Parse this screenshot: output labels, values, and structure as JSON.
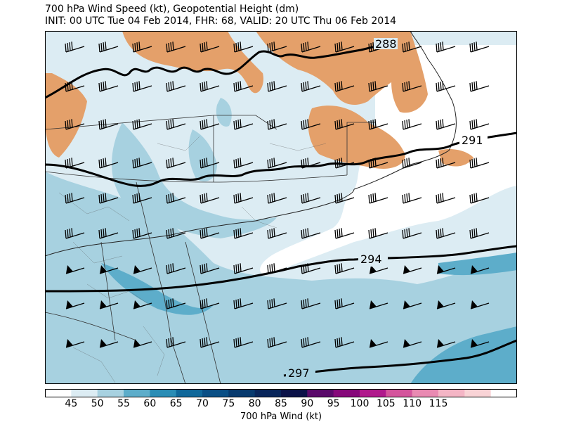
{
  "title": "700 hPa Wind Speed (kt), Geopotential Height (dm)",
  "subtitle": "INIT: 00 UTC Tue 04 Feb 2014, FHR: 68, VALID: 20 UTC Thu 06 Feb 2014",
  "colorbar": {
    "label": "700 hPa Wind (kt)",
    "ticks": [
      "45",
      "50",
      "55",
      "60",
      "65",
      "70",
      "75",
      "80",
      "85",
      "90",
      "95",
      "100",
      "105",
      "110",
      "115"
    ],
    "colors": [
      "#ffffff",
      "#dcecf3",
      "#a7d1e0",
      "#5dadca",
      "#2a8db5",
      "#10689a",
      "#0a4f85",
      "#073a6e",
      "#08255a",
      "#0b1248",
      "#5a0a6a",
      "#86087a",
      "#b01a8c",
      "#d4559c",
      "#e98ab2",
      "#f4b5c5",
      "#f9d3d6",
      "#ffffff"
    ]
  },
  "colors": {
    "land_below_ground": "#e4a06a",
    "speed_45_50": "#dcecf3",
    "speed_50_55": "#a7d1e0",
    "speed_55_60": "#5dadca",
    "height_contour": "#000000"
  },
  "contour_labels": [
    "288",
    "291",
    "294",
    "297"
  ]
}
